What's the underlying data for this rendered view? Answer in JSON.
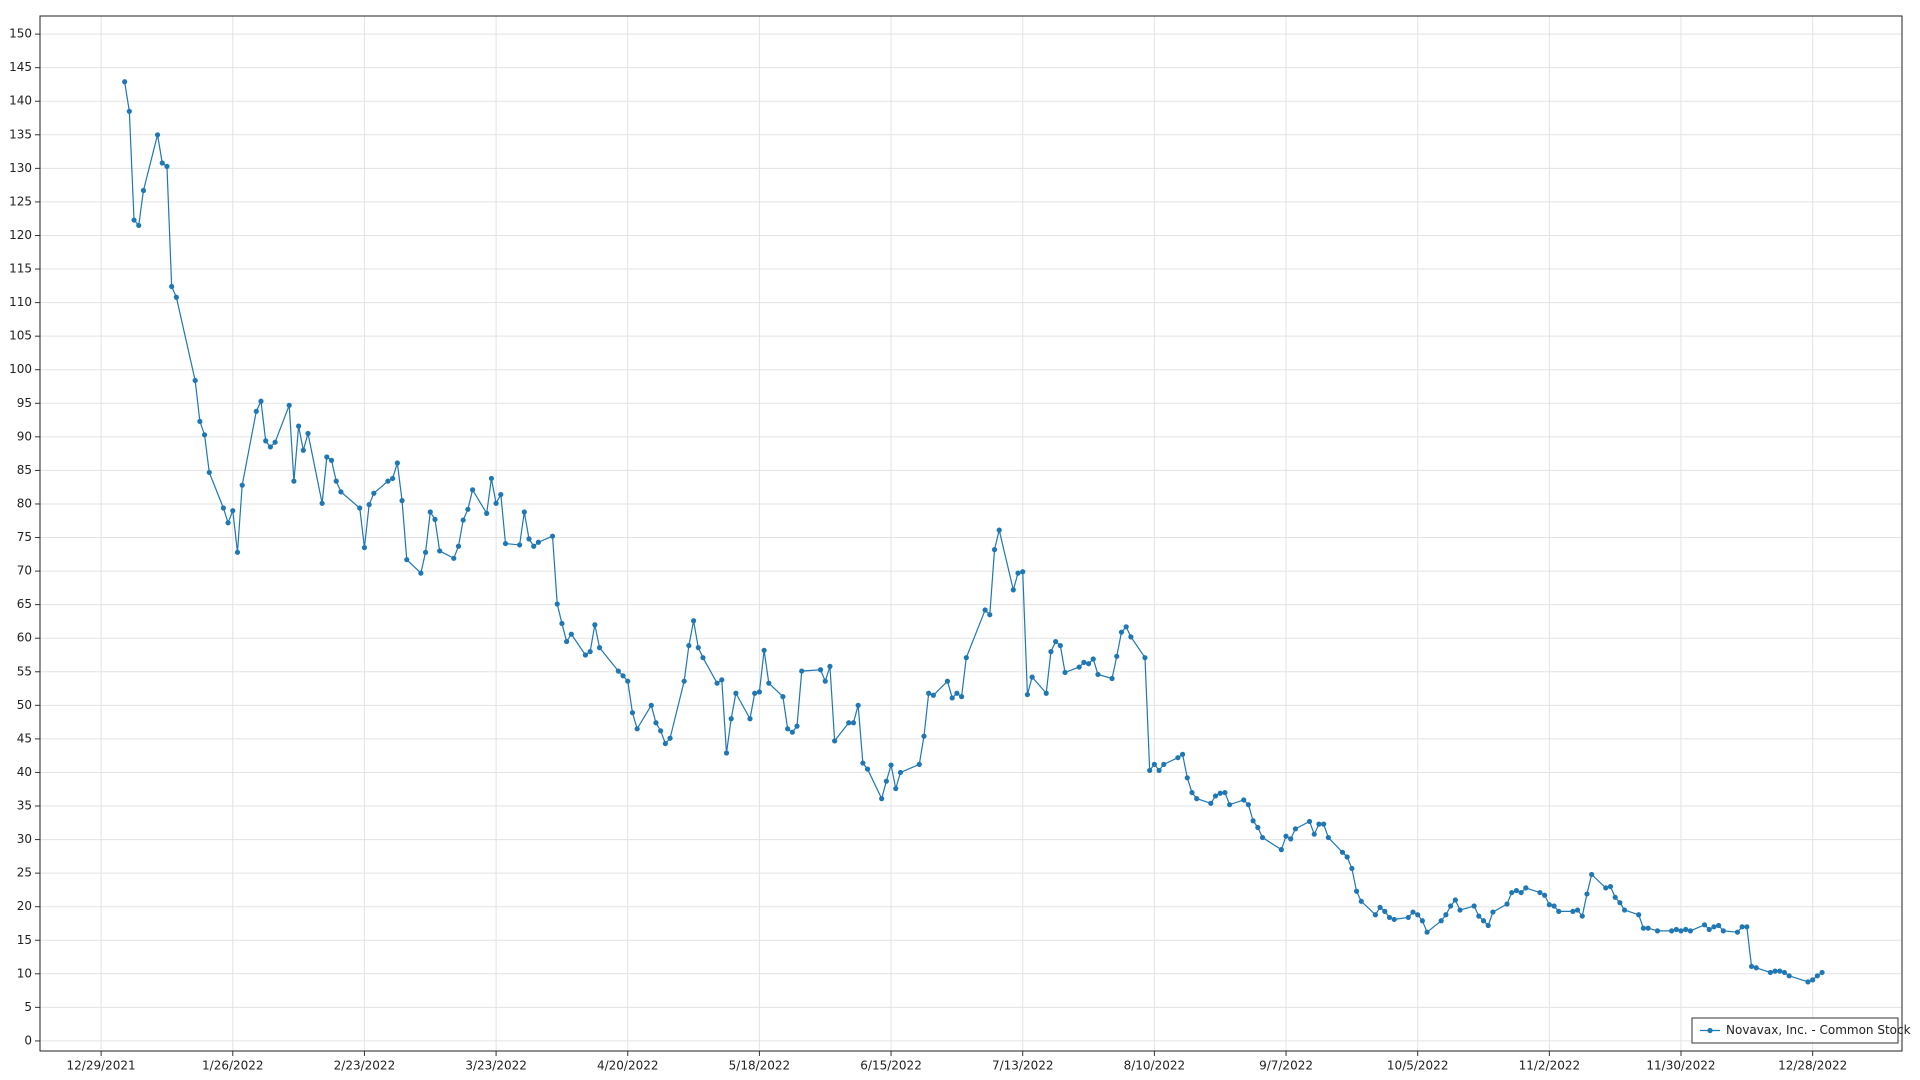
{
  "chart_data": {
    "type": "line",
    "x": [
      "1/3/2022",
      "1/4/2022",
      "1/5/2022",
      "1/6/2022",
      "1/7/2022",
      "1/10/2022",
      "1/11/2022",
      "1/12/2022",
      "1/13/2022",
      "1/14/2022",
      "1/18/2022",
      "1/19/2022",
      "1/20/2022",
      "1/21/2022",
      "1/24/2022",
      "1/25/2022",
      "1/26/2022",
      "1/27/2022",
      "1/28/2022",
      "1/31/2022",
      "2/1/2022",
      "2/2/2022",
      "2/3/2022",
      "2/4/2022",
      "2/7/2022",
      "2/8/2022",
      "2/9/2022",
      "2/10/2022",
      "2/11/2022",
      "2/14/2022",
      "2/15/2022",
      "2/16/2022",
      "2/17/2022",
      "2/18/2022",
      "2/22/2022",
      "2/23/2022",
      "2/24/2022",
      "2/25/2022",
      "2/28/2022",
      "3/1/2022",
      "3/2/2022",
      "3/3/2022",
      "3/4/2022",
      "3/7/2022",
      "3/8/2022",
      "3/9/2022",
      "3/10/2022",
      "3/11/2022",
      "3/14/2022",
      "3/15/2022",
      "3/16/2022",
      "3/17/2022",
      "3/18/2022",
      "3/21/2022",
      "3/22/2022",
      "3/23/2022",
      "3/24/2022",
      "3/25/2022",
      "3/28/2022",
      "3/29/2022",
      "3/30/2022",
      "3/31/2022",
      "4/1/2022",
      "4/4/2022",
      "4/5/2022",
      "4/6/2022",
      "4/7/2022",
      "4/8/2022",
      "4/11/2022",
      "4/12/2022",
      "4/13/2022",
      "4/14/2022",
      "4/18/2022",
      "4/19/2022",
      "4/20/2022",
      "4/21/2022",
      "4/22/2022",
      "4/25/2022",
      "4/26/2022",
      "4/27/2022",
      "4/28/2022",
      "4/29/2022",
      "5/2/2022",
      "5/3/2022",
      "5/4/2022",
      "5/5/2022",
      "5/6/2022",
      "5/9/2022",
      "5/10/2022",
      "5/11/2022",
      "5/12/2022",
      "5/13/2022",
      "5/16/2022",
      "5/17/2022",
      "5/18/2022",
      "5/19/2022",
      "5/20/2022",
      "5/23/2022",
      "5/24/2022",
      "5/25/2022",
      "5/26/2022",
      "5/27/2022",
      "5/31/2022",
      "6/1/2022",
      "6/2/2022",
      "6/3/2022",
      "6/6/2022",
      "6/7/2022",
      "6/8/2022",
      "6/9/2022",
      "6/10/2022",
      "6/13/2022",
      "6/14/2022",
      "6/15/2022",
      "6/16/2022",
      "6/17/2022",
      "6/21/2022",
      "6/22/2022",
      "6/23/2022",
      "6/24/2022",
      "6/27/2022",
      "6/28/2022",
      "6/29/2022",
      "6/30/2022",
      "7/1/2022",
      "7/5/2022",
      "7/6/2022",
      "7/7/2022",
      "7/8/2022",
      "7/11/2022",
      "7/12/2022",
      "7/13/2022",
      "7/14/2022",
      "7/15/2022",
      "7/18/2022",
      "7/19/2022",
      "7/20/2022",
      "7/21/2022",
      "7/22/2022",
      "7/25/2022",
      "7/26/2022",
      "7/27/2022",
      "7/28/2022",
      "7/29/2022",
      "8/1/2022",
      "8/2/2022",
      "8/3/2022",
      "8/4/2022",
      "8/5/2022",
      "8/8/2022",
      "8/9/2022",
      "8/10/2022",
      "8/11/2022",
      "8/12/2022",
      "8/15/2022",
      "8/16/2022",
      "8/17/2022",
      "8/18/2022",
      "8/19/2022",
      "8/22/2022",
      "8/23/2022",
      "8/24/2022",
      "8/25/2022",
      "8/26/2022",
      "8/29/2022",
      "8/30/2022",
      "8/31/2022",
      "9/1/2022",
      "9/2/2022",
      "9/6/2022",
      "9/7/2022",
      "9/8/2022",
      "9/9/2022",
      "9/12/2022",
      "9/13/2022",
      "9/14/2022",
      "9/15/2022",
      "9/16/2022",
      "9/19/2022",
      "9/20/2022",
      "9/21/2022",
      "9/22/2022",
      "9/23/2022",
      "9/26/2022",
      "9/27/2022",
      "9/28/2022",
      "9/29/2022",
      "9/30/2022",
      "10/3/2022",
      "10/4/2022",
      "10/5/2022",
      "10/6/2022",
      "10/7/2022",
      "10/10/2022",
      "10/11/2022",
      "10/12/2022",
      "10/13/2022",
      "10/14/2022",
      "10/17/2022",
      "10/18/2022",
      "10/19/2022",
      "10/20/2022",
      "10/21/2022",
      "10/24/2022",
      "10/25/2022",
      "10/26/2022",
      "10/27/2022",
      "10/28/2022",
      "10/31/2022",
      "11/1/2022",
      "11/2/2022",
      "11/3/2022",
      "11/4/2022",
      "11/7/2022",
      "11/8/2022",
      "11/9/2022",
      "11/10/2022",
      "11/11/2022",
      "11/14/2022",
      "11/15/2022",
      "11/16/2022",
      "11/17/2022",
      "11/18/2022",
      "11/21/2022",
      "11/22/2022",
      "11/23/2022",
      "11/25/2022",
      "11/28/2022",
      "11/29/2022",
      "11/30/2022",
      "12/1/2022",
      "12/2/2022",
      "12/5/2022",
      "12/6/2022",
      "12/7/2022",
      "12/8/2022",
      "12/9/2022",
      "12/12/2022",
      "12/13/2022",
      "12/14/2022",
      "12/15/2022",
      "12/16/2022",
      "12/19/2022",
      "12/20/2022",
      "12/21/2022",
      "12/22/2022",
      "12/23/2022",
      "12/27/2022",
      "12/28/2022",
      "12/29/2022",
      "12/30/2022"
    ],
    "series": [
      {
        "name": "Novavax, Inc. - Common Stock",
        "color": "#1f77b4",
        "values": [
          142.9,
          138.5,
          122.3,
          121.5,
          126.7,
          135,
          130.8,
          130.3,
          112.4,
          110.8,
          98.4,
          92.3,
          90.3,
          84.7,
          79.4,
          77.2,
          79.0,
          72.8,
          82.8,
          93.8,
          95.3,
          89.4,
          88.5,
          89.2,
          94.7,
          83.4,
          91.6,
          88.0,
          90.5,
          80.1,
          87.0,
          86.5,
          83.4,
          81.8,
          79.4,
          73.5,
          79.9,
          81.6,
          83.4,
          83.8,
          86.1,
          80.5,
          71.7,
          69.7,
          72.8,
          78.8,
          77.7,
          73.0,
          71.9,
          73.7,
          77.6,
          79.2,
          82.1,
          78.6,
          83.8,
          80.1,
          81.4,
          74.1,
          73.9,
          78.8,
          74.8,
          73.7,
          74.3,
          75.2,
          65.1,
          62.2,
          59.5,
          60.6,
          57.5,
          58.0,
          62.0,
          58.6,
          55.1,
          54.4,
          53.6,
          48.9,
          46.5,
          50.0,
          47.4,
          46.2,
          44.3,
          45.1,
          53.6,
          58.9,
          62.6,
          58.6,
          57.1,
          53.3,
          53.8,
          42.9,
          48.0,
          51.8,
          48.0,
          51.8,
          52.0,
          58.2,
          53.3,
          51.3,
          46.5,
          46.0,
          46.9,
          55.1,
          55.3,
          53.6,
          55.8,
          44.7,
          47.4,
          47.4,
          50.0,
          41.4,
          40.5,
          36.1,
          38.7,
          41.1,
          37.6,
          40.0,
          41.2,
          45.4,
          51.8,
          51.5,
          53.6,
          51.1,
          51.8,
          51.3,
          57.1,
          64.2,
          63.5,
          73.2,
          76.1,
          67.2,
          69.7,
          69.9,
          51.6,
          54.2,
          51.8,
          58.0,
          59.5,
          58.9,
          54.9,
          55.7,
          56.4,
          56.2,
          56.9,
          54.6,
          54.0,
          57.3,
          60.9,
          61.7,
          60.2,
          57.1,
          40.3,
          41.2,
          40.3,
          41.2,
          42.2,
          42.7,
          39.2,
          37.0,
          36.1,
          35.4,
          36.5,
          36.9,
          37.0,
          35.2,
          35.9,
          35.2,
          32.8,
          31.8,
          30.3,
          28.5,
          30.5,
          30.1,
          31.6,
          32.7,
          30.8,
          32.3,
          32.3,
          30.3,
          28.1,
          27.4,
          25.7,
          22.3,
          20.8,
          18.8,
          19.9,
          19.3,
          18.4,
          18.1,
          18.4,
          19.2,
          18.8,
          17.9,
          16.2,
          17.9,
          18.8,
          20.1,
          21.0,
          19.5,
          20.1,
          18.6,
          17.9,
          17.2,
          19.2,
          20.4,
          22.1,
          22.4,
          22.1,
          22.8,
          22.1,
          21.7,
          20.3,
          20.1,
          19.3,
          19.3,
          19.5,
          18.6,
          21.9,
          24.8,
          22.8,
          23.0,
          21.4,
          20.6,
          19.5,
          18.8,
          16.8,
          16.8,
          16.4,
          16.4,
          16.6,
          16.4,
          16.6,
          16.4,
          17.3,
          16.6,
          17.0,
          17.2,
          16.4,
          16.2,
          17.0,
          17.0,
          11.1,
          10.9,
          10.2,
          10.4,
          10.4,
          10.2,
          9.7,
          8.8,
          9.1,
          9.7,
          10.2
        ]
      }
    ],
    "xlim": [
      "12/16/2021",
      "1/16/2023"
    ],
    "xticks": [
      "12/29/2021",
      "1/26/2022",
      "2/23/2022",
      "3/23/2022",
      "4/20/2022",
      "5/18/2022",
      "6/15/2022",
      "7/13/2022",
      "8/10/2022",
      "9/7/2022",
      "10/5/2022",
      "11/2/2022",
      "11/30/2022",
      "12/28/2022"
    ],
    "ylim": [
      -1.5,
      152.7
    ],
    "yticks": [
      0,
      5,
      10,
      15,
      20,
      25,
      30,
      35,
      40,
      45,
      50,
      55,
      60,
      65,
      70,
      75,
      80,
      85,
      90,
      95,
      100,
      105,
      110,
      115,
      120,
      125,
      130,
      135,
      140,
      145,
      150
    ],
    "grid": true,
    "legend": "bottom-right"
  }
}
